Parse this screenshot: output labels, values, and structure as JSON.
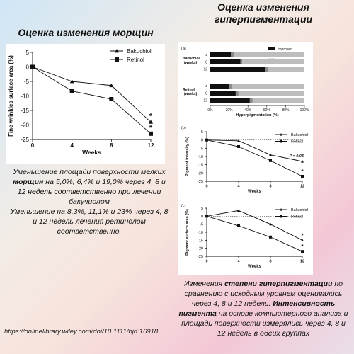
{
  "left_title": "Оценка изменения морщин",
  "right_title_line1": "Оценка изменения",
  "right_title_line2": "гиперпигментации",
  "left_caption": {
    "p1_pre": "Уменьшение площади поверхности мелких ",
    "p1_bold": "морщин",
    "p1_post": " на 5,0%, 6,4% и 19,0% через 4, 8 и 12 недель соответственно при лечении бакучиолом",
    "p2": "Уменьшение на 8,3%, 11,1% и 23% через 4, 8 и 12 недель лечения ретинолом соответственно."
  },
  "right_caption": {
    "pre": "Изменения ",
    "bold1": "степени гиперпигментации",
    "mid1": " по сравнению с исходным уровнем оценивались через 4, 8 и 12 недель. ",
    "bold2": "Интенсивность пигмента",
    "mid2": " на основе компьютерного анализа и площадь поверхности измерялись через 4, 8 и 12 недель в обеих группах"
  },
  "source_url": "https://onlinelibrary.wiley.com/doi/10.1111/bjd.16918",
  "colors": {
    "improved": "#111111",
    "worsened": "#8a8a8a",
    "unchanged": "#bdbdbd"
  },
  "chart_data": [
    {
      "type": "line",
      "id": "wrinkles",
      "xlabel": "Weeks",
      "ylabel": "Fine wrinkles surface area (%)",
      "x": [
        0,
        4,
        8,
        12
      ],
      "xticks": [
        "0",
        "4",
        "8",
        "12"
      ],
      "ylim": [
        -25,
        5
      ],
      "yticks": [
        "5",
        "0",
        "-5",
        "-10",
        "-15",
        "-20",
        "-25"
      ],
      "series": [
        {
          "name": "Bakuchiol",
          "marker": "triangle",
          "values": [
            0,
            -5.0,
            -6.4,
            -19.0
          ]
        },
        {
          "name": "Retinol",
          "marker": "square",
          "values": [
            0,
            -8.3,
            -11.1,
            -23.0
          ]
        }
      ],
      "annotations": [
        "*",
        "*"
      ]
    },
    {
      "type": "bar",
      "id": "hyperpigmentation",
      "panel": "(a)",
      "xlabel": "Hyperpigmentation (%)",
      "xticks": [
        "0%",
        "20%",
        "40%",
        "60%",
        "80%",
        "100%"
      ],
      "legend": [
        "Improved",
        "Worsened",
        "Unchanged"
      ],
      "groups": [
        {
          "name": "Bakuchiol (weeks)",
          "rows": [
            {
              "label": "4",
              "improved": 22,
              "worsened": 3,
              "unchanged": 75
            },
            {
              "label": "8",
              "improved": 32,
              "worsened": 2,
              "unchanged": 66
            },
            {
              "label": "12",
              "improved": 58,
              "worsened": 3,
              "unchanged": 39
            }
          ]
        },
        {
          "name": "Retinol (weeks)",
          "rows": [
            {
              "label": "4",
              "improved": 20,
              "worsened": 3,
              "unchanged": 77
            },
            {
              "label": "8",
              "improved": 27,
              "worsened": 3,
              "unchanged": 70
            },
            {
              "label": "12",
              "improved": 42,
              "worsened": 3,
              "unchanged": 55
            }
          ]
        }
      ]
    },
    {
      "type": "line",
      "id": "pigment_intensity",
      "panel": "(b)",
      "xlabel": "Weeks",
      "ylabel": "Pigment intensity (%)",
      "x": [
        0,
        4,
        8,
        12
      ],
      "xticks": [
        "0",
        "4",
        "8",
        "12"
      ],
      "ylim": [
        -25,
        5
      ],
      "yticks": [
        "5",
        "0",
        "-5",
        "-10",
        "-15",
        "-20",
        "-25"
      ],
      "series": [
        {
          "name": "Bakuchiol",
          "marker": "triangle",
          "values": [
            0,
            -0.5,
            -9,
            -13
          ]
        },
        {
          "name": "Retinol",
          "marker": "square",
          "values": [
            0,
            -4,
            -12.5,
            -22
          ]
        }
      ],
      "annotations": [
        "P = 0.05",
        "*"
      ]
    },
    {
      "type": "line",
      "id": "pigment_area",
      "panel": "(c)",
      "xlabel": "Weeks",
      "ylabel": "Pigment surface area (%)",
      "x": [
        0,
        4,
        8,
        12
      ],
      "xticks": [
        "0",
        "4",
        "8",
        "12"
      ],
      "ylim": [
        -25,
        5
      ],
      "yticks": [
        "5",
        "0",
        "-5",
        "-10",
        "-15",
        "-20",
        "-25"
      ],
      "series": [
        {
          "name": "Bakuchiol",
          "marker": "triangle",
          "values": [
            0,
            3.5,
            -5,
            -15
          ]
        },
        {
          "name": "Retinol",
          "marker": "square",
          "values": [
            0,
            -6,
            -13,
            -22
          ]
        }
      ],
      "annotations": [
        "*",
        "*"
      ]
    }
  ]
}
